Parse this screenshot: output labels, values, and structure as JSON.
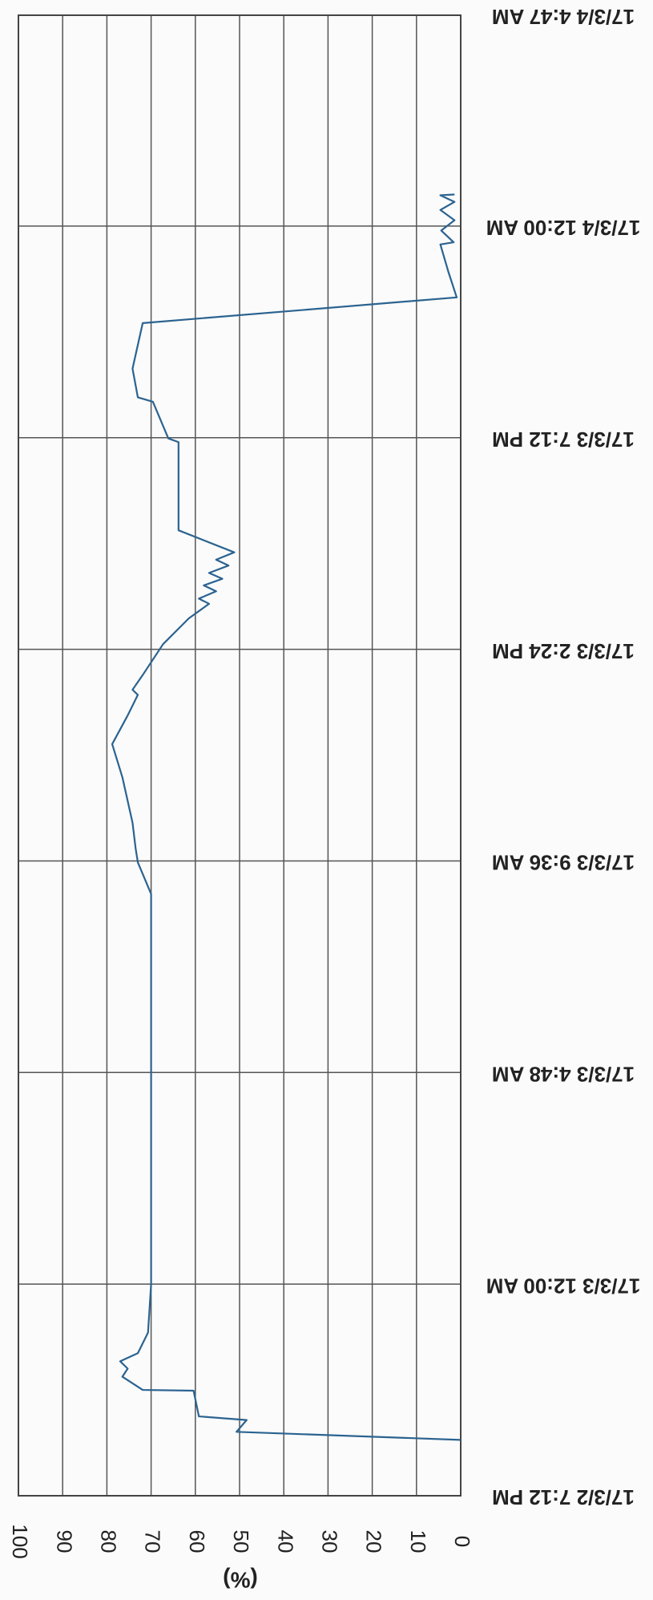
{
  "chart_data": {
    "type": "line",
    "ylabel": "(%)",
    "ylim": [
      0,
      100
    ],
    "yticks": [
      0,
      10,
      20,
      30,
      40,
      50,
      60,
      70,
      80,
      90,
      100
    ],
    "xlim": [
      "17/3/2 7:12 PM",
      "17/3/4 4:47 AM"
    ],
    "xticks": [
      "17/3/2 7:12 PM",
      "17/3/3 12:00 AM",
      "17/3/3 4:48 AM",
      "17/3/3 9:36 AM",
      "17/3/3 2:24 PM",
      "17/3/3 7:12 PM",
      "17/3/4 12:00 AM",
      "17/3/4 4:47 AM"
    ],
    "grid": true,
    "color": "#2b6390",
    "x": [
      "17/3/2 8:28 PM",
      "17/3/2 8:39 PM",
      "17/3/2 8:55 PM",
      "17/3/2 9:00 PM",
      "17/3/2 9:35 PM",
      "17/3/2 9:36 PM",
      "17/3/2 9:54 PM",
      "17/3/2 10:05 PM",
      "17/3/2 10:15 PM",
      "17/3/2 10:26 PM",
      "17/3/2 10:54 PM",
      "17/3/3 12:00 AM",
      "17/3/3 4:48 AM",
      "17/3/3 8:51 AM",
      "17/3/3 9:34 AM",
      "17/3/3 9:53 AM",
      "17/3/3 10:28 AM",
      "17/3/3 11:30 AM",
      "17/3/3 12:15 PM",
      "17/3/3 12:54 PM",
      "17/3/3 1:22 PM",
      "17/3/3 1:29 PM",
      "17/3/3 1:49 PM",
      "17/3/3 2:10 PM",
      "17/3/3 2:31 PM",
      "17/3/3 3:06 PM",
      "17/3/3 3:26 PM",
      "17/3/3 3:33 PM",
      "17/3/3 3:43 PM",
      "17/3/3 3:51 PM",
      "17/3/3 4:00 PM",
      "17/3/3 4:08 PM",
      "17/3/3 4:18 PM",
      "17/3/3 4:26 PM",
      "17/3/3 4:36 PM",
      "17/3/3 5:06 PM",
      "17/3/3 7:06 PM",
      "17/3/3 7:11 PM",
      "17/3/3 8:01 PM",
      "17/3/3 8:07 PM",
      "17/3/3 8:46 PM",
      "17/3/3 9:48 PM",
      "17/3/3 10:23 PM",
      "17/3/3 10:58 PM",
      "17/3/3 11:35 PM",
      "17/3/3 11:38 PM",
      "17/3/3 11:54 PM",
      "17/3/4 12:08 AM",
      "17/3/4 12:22 AM",
      "17/3/4 12:33 AM",
      "17/3/4 12:42 AM",
      "17/3/4 12:43 AM"
    ],
    "values": [
      0,
      50.7,
      48.4,
      59.2,
      60.4,
      71.9,
      76.5,
      75.3,
      77,
      73,
      70.7,
      70,
      70,
      70,
      73,
      73.5,
      74.2,
      76.5,
      78.8,
      75.3,
      73,
      74.2,
      71.9,
      69.6,
      67.3,
      61.5,
      56.9,
      59.2,
      55.3,
      58.1,
      53.9,
      56.9,
      52.5,
      55.3,
      51.2,
      63.8,
      63.8,
      66.1,
      69.6,
      73,
      74.2,
      71.9,
      0.9,
      2.8,
      4.6,
      1.6,
      4.4,
      1.4,
      4.6,
      1.4,
      4.6,
      1.4
    ]
  }
}
